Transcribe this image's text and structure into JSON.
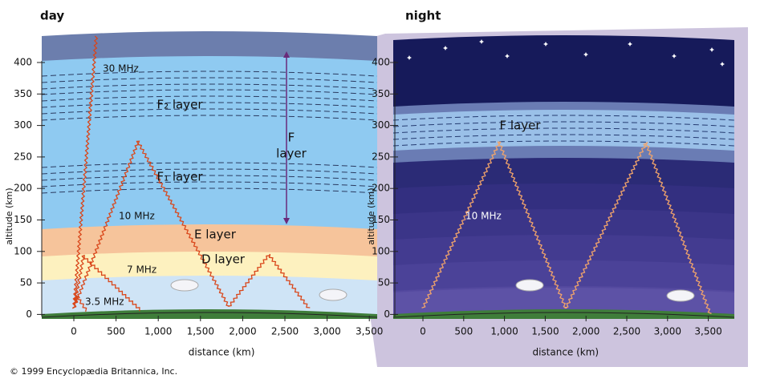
{
  "day_panel": {
    "title": "day",
    "y_axis": {
      "label": "altitude (km)",
      "ticks": [
        "400",
        "350",
        "300",
        "250",
        "200",
        "150",
        "100",
        "50",
        "0"
      ]
    },
    "x_axis": {
      "label": "distance (km)",
      "ticks": [
        "0",
        "500",
        "1,000",
        "1,500",
        "2,000",
        "2,500",
        "3,000",
        "3,500"
      ]
    },
    "labels": {
      "f2_layer": "F₂ layer",
      "f_layer": [
        "F",
        "layer"
      ],
      "f1_layer": "F₁ layer",
      "e_layer": "E layer",
      "d_layer": "D layer",
      "wave_30": "30 MHz",
      "wave_10": "10 MHz",
      "wave_7": "7 MHz",
      "wave_35": "3.5 MHz"
    }
  },
  "night_panel": {
    "title": "night",
    "y_axis": {
      "label": "altitude (km)",
      "ticks": [
        "400",
        "350",
        "300",
        "250",
        "200",
        "150",
        "100",
        "50",
        "0"
      ]
    },
    "x_axis": {
      "label": "distance (km)",
      "ticks": [
        "0",
        "500",
        "1,000",
        "1,500",
        "2,000",
        "2,500",
        "3,000",
        "3,500"
      ]
    },
    "labels": {
      "f_layer": "F layer",
      "wave_10": "10 MHz"
    }
  },
  "copyright": "© 1999 Encyclopædia Britannica, Inc."
}
